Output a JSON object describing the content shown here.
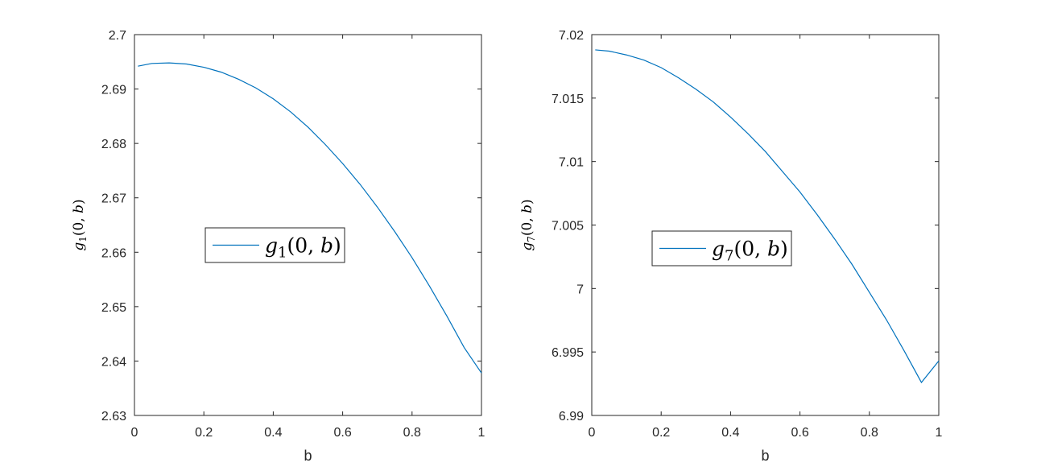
{
  "chart_data": [
    {
      "type": "line",
      "xlabel": "b",
      "ylabel": {
        "fn": "g",
        "sub": "1",
        "args": "(0, b)"
      },
      "xlim": [
        0,
        1
      ],
      "ylim": [
        2.63,
        2.7
      ],
      "xticks": [
        0,
        0.2,
        0.4,
        0.6,
        0.8,
        1
      ],
      "xtick_labels": [
        "0",
        "0.2",
        "0.4",
        "0.6",
        "0.8",
        "1"
      ],
      "yticks": [
        2.63,
        2.64,
        2.65,
        2.66,
        2.67,
        2.68,
        2.69,
        2.7
      ],
      "ytick_labels": [
        "2.63",
        "2.64",
        "2.65",
        "2.66",
        "2.67",
        "2.68",
        "2.69",
        "2.7"
      ],
      "grid": false,
      "legend_position": "center",
      "series": [
        {
          "name": {
            "fn": "g",
            "sub": "1",
            "args": "(0, b)"
          },
          "color": "#0072BD",
          "x": [
            0.01,
            0.05,
            0.1,
            0.15,
            0.2,
            0.25,
            0.3,
            0.35,
            0.4,
            0.45,
            0.5,
            0.55,
            0.6,
            0.65,
            0.7,
            0.75,
            0.8,
            0.85,
            0.9,
            0.95,
            1.0
          ],
          "y": [
            2.6942,
            2.6947,
            2.6948,
            2.6946,
            2.694,
            2.6931,
            2.6918,
            2.6902,
            2.6882,
            2.6858,
            2.683,
            2.6798,
            2.6763,
            2.6725,
            2.6683,
            2.6638,
            2.659,
            2.6538,
            2.6483,
            2.6425,
            2.6378
          ]
        }
      ]
    },
    {
      "type": "line",
      "xlabel": "b",
      "ylabel": {
        "fn": "g",
        "sub": "7",
        "args": "(0, b)"
      },
      "xlim": [
        0,
        1
      ],
      "ylim": [
        6.99,
        7.02
      ],
      "xticks": [
        0,
        0.2,
        0.4,
        0.6,
        0.8,
        1
      ],
      "xtick_labels": [
        "0",
        "0.2",
        "0.4",
        "0.6",
        "0.8",
        "1"
      ],
      "yticks": [
        6.99,
        6.995,
        7.0,
        7.005,
        7.01,
        7.015,
        7.02
      ],
      "ytick_labels": [
        "6.99",
        "6.995",
        "7",
        "7.005",
        "7.01",
        "7.015",
        "7.02"
      ],
      "grid": false,
      "legend_position": "center",
      "series": [
        {
          "name": {
            "fn": "g",
            "sub": "7",
            "args": "(0, b)"
          },
          "color": "#0072BD",
          "x": [
            0.01,
            0.05,
            0.1,
            0.15,
            0.2,
            0.25,
            0.3,
            0.35,
            0.4,
            0.45,
            0.5,
            0.55,
            0.6,
            0.65,
            0.7,
            0.75,
            0.8,
            0.85,
            0.9,
            0.95,
            1.0
          ],
          "y": [
            7.0188,
            7.0187,
            7.0184,
            7.018,
            7.0174,
            7.0166,
            7.0157,
            7.0147,
            7.0135,
            7.0122,
            7.0108,
            7.0092,
            7.0076,
            7.0058,
            7.0039,
            7.0019,
            6.9997,
            6.9975,
            6.9951,
            6.9926,
            6.9943
          ]
        }
      ]
    }
  ]
}
